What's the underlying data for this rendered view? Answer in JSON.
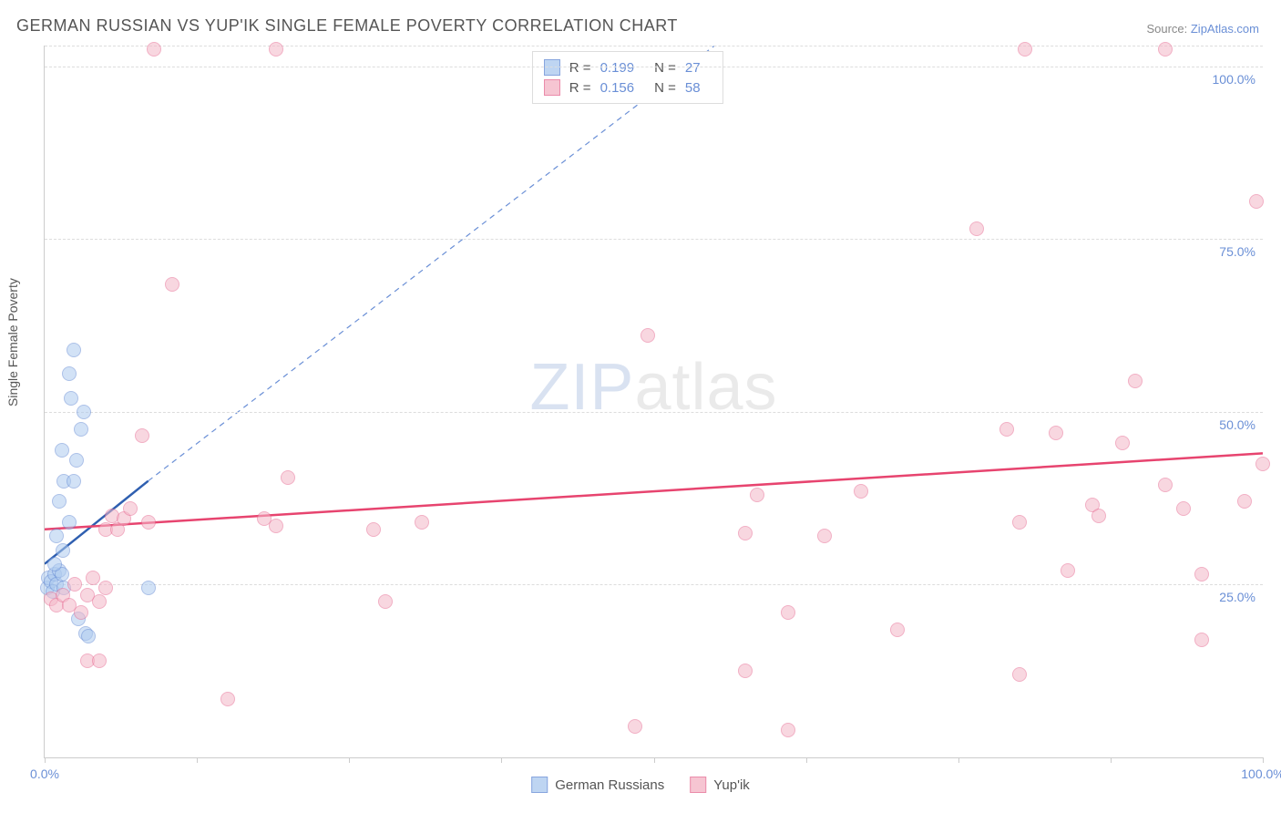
{
  "title": "GERMAN RUSSIAN VS YUP'IK SINGLE FEMALE POVERTY CORRELATION CHART",
  "source_prefix": "Source: ",
  "source_name": "ZipAtlas.com",
  "y_axis_label": "Single Female Poverty",
  "watermark_a": "ZIP",
  "watermark_b": "atlas",
  "chart": {
    "type": "scatter",
    "xlim": [
      0,
      100
    ],
    "ylim": [
      0,
      103
    ],
    "x_ticks": [
      0,
      12.5,
      25,
      37.5,
      50,
      62.5,
      75,
      87.5,
      100
    ],
    "x_tick_labels": {
      "0": "0.0%",
      "100": "100.0%"
    },
    "y_gridlines": [
      25,
      50,
      75,
      100,
      103
    ],
    "y_tick_labels": {
      "25": "25.0%",
      "50": "50.0%",
      "75": "75.0%",
      "100": "100.0%"
    },
    "grid_color": "#dddddd",
    "axis_color": "#cccccc",
    "tick_label_color": "#6a8fd6",
    "label_fontsize": 14,
    "title_fontsize": 18,
    "background_color": "#ffffff"
  },
  "series": [
    {
      "name": "German Russians",
      "fill": "#aecbef",
      "fill_opacity": 0.55,
      "stroke": "#6a8fd6",
      "marker": "circle",
      "marker_size": 16,
      "R": "0.199",
      "N": "27",
      "trend": {
        "x1": 0,
        "y1": 28,
        "x2": 8.5,
        "y2": 40,
        "color": "#2f5fb0",
        "width": 2.5,
        "dash": "none"
      },
      "trend_ext": {
        "x1": 8.5,
        "y1": 40,
        "x2": 55,
        "y2": 103,
        "color": "#6a8fd6",
        "width": 1.2,
        "dash": "6,5"
      },
      "points": [
        [
          0.2,
          24.5
        ],
        [
          0.3,
          26
        ],
        [
          0.5,
          25.5
        ],
        [
          0.8,
          26.5
        ],
        [
          0.7,
          24
        ],
        [
          1.0,
          25
        ],
        [
          1.2,
          27
        ],
        [
          1.4,
          26.5
        ],
        [
          0.8,
          28
        ],
        [
          1.6,
          24.5
        ],
        [
          1.2,
          37
        ],
        [
          1.6,
          40
        ],
        [
          1.4,
          44.5
        ],
        [
          2.0,
          34
        ],
        [
          2.4,
          40
        ],
        [
          2.6,
          43
        ],
        [
          3.0,
          47.5
        ],
        [
          3.2,
          50
        ],
        [
          2.2,
          52
        ],
        [
          2.0,
          55.5
        ],
        [
          2.4,
          59
        ],
        [
          3.4,
          18
        ],
        [
          3.6,
          17.5
        ],
        [
          2.8,
          20
        ],
        [
          8.5,
          24.5
        ],
        [
          1.0,
          32
        ],
        [
          1.5,
          30
        ]
      ]
    },
    {
      "name": "Yup'ik",
      "fill": "#f4b7c8",
      "fill_opacity": 0.55,
      "stroke": "#e76f95",
      "marker": "circle",
      "marker_size": 16,
      "R": "0.156",
      "N": "58",
      "trend": {
        "x1": 0,
        "y1": 33,
        "x2": 100,
        "y2": 44,
        "color": "#e7446f",
        "width": 2.5,
        "dash": "none"
      },
      "points": [
        [
          0.5,
          23
        ],
        [
          1.0,
          22
        ],
        [
          1.5,
          23.5
        ],
        [
          2.0,
          22
        ],
        [
          2.5,
          25
        ],
        [
          3.0,
          21
        ],
        [
          3.5,
          23.5
        ],
        [
          4.0,
          26
        ],
        [
          4.5,
          22.5
        ],
        [
          5.0,
          24.5
        ],
        [
          3.5,
          14
        ],
        [
          4.5,
          14
        ],
        [
          5.0,
          33
        ],
        [
          5.5,
          35
        ],
        [
          6.0,
          33
        ],
        [
          6.5,
          34.5
        ],
        [
          7.0,
          36
        ],
        [
          8.0,
          46.5
        ],
        [
          8.5,
          34
        ],
        [
          9.0,
          102.5
        ],
        [
          10.5,
          68.5
        ],
        [
          15,
          8.5
        ],
        [
          18,
          34.5
        ],
        [
          19,
          102.5
        ],
        [
          19,
          33.5
        ],
        [
          20,
          40.5
        ],
        [
          27,
          33
        ],
        [
          28,
          22.5
        ],
        [
          31,
          34
        ],
        [
          48.5,
          4.5
        ],
        [
          49.5,
          61
        ],
        [
          57.5,
          32.5
        ],
        [
          57.5,
          12.5
        ],
        [
          58.5,
          38
        ],
        [
          61,
          4
        ],
        [
          61,
          21
        ],
        [
          64,
          32
        ],
        [
          67,
          38.5
        ],
        [
          70,
          18.5
        ],
        [
          76.5,
          76.5
        ],
        [
          79,
          47.5
        ],
        [
          80,
          12
        ],
        [
          80,
          34
        ],
        [
          80.5,
          102.5
        ],
        [
          83,
          47
        ],
        [
          84,
          27
        ],
        [
          86,
          36.5
        ],
        [
          86.5,
          35
        ],
        [
          88.5,
          45.5
        ],
        [
          89.5,
          54.5
        ],
        [
          92,
          39.5
        ],
        [
          92,
          102.5
        ],
        [
          93.5,
          36
        ],
        [
          95,
          26.5
        ],
        [
          95,
          17
        ],
        [
          98.5,
          37
        ],
        [
          99.5,
          80.5
        ],
        [
          100,
          42.5
        ]
      ]
    }
  ],
  "legend_top_labels": {
    "R": "R =",
    "N": "N ="
  },
  "legend_bottom": [
    "German Russians",
    "Yup'ik"
  ]
}
